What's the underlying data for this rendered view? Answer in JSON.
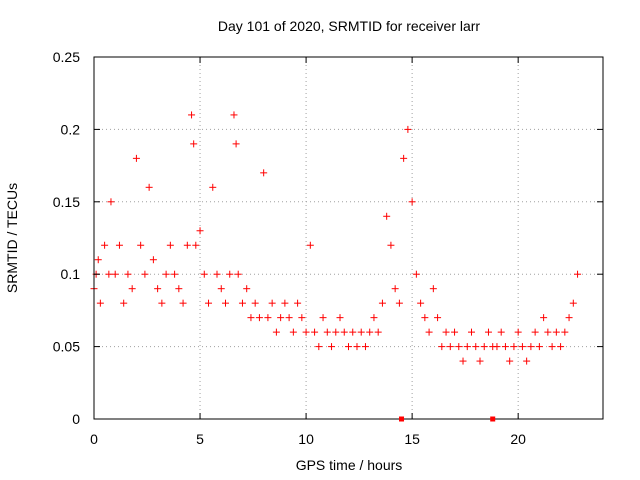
{
  "chart_data": {
    "type": "scatter",
    "title": "Day 101 of 2020, SRMTID for receiver larr",
    "xlabel": "GPS time / hours",
    "ylabel": "SRMTID / TECUs",
    "xlim": [
      0,
      24
    ],
    "ylim": [
      0,
      0.25
    ],
    "xticks": [
      0,
      5,
      10,
      15,
      20
    ],
    "xtick_labels": [
      "0",
      "5",
      "10",
      "15",
      "20"
    ],
    "yticks": [
      0,
      0.05,
      0.1,
      0.15,
      0.2,
      0.25
    ],
    "ytick_labels": [
      "0",
      "0.05",
      "0.1",
      "0.15",
      "0.2",
      "0.25"
    ],
    "grid": true,
    "marker": "plus",
    "color": "#ff0000",
    "series": [
      {
        "name": "SRMTID",
        "x": [
          0.0,
          0.1,
          0.2,
          0.3,
          0.5,
          0.7,
          0.8,
          1.0,
          1.2,
          1.4,
          1.6,
          1.8,
          2.0,
          2.2,
          2.4,
          2.6,
          2.8,
          3.0,
          3.2,
          3.4,
          3.6,
          3.8,
          4.0,
          4.2,
          4.4,
          4.6,
          4.7,
          4.8,
          5.0,
          5.2,
          5.4,
          5.6,
          5.8,
          6.0,
          6.2,
          6.4,
          6.6,
          6.7,
          6.8,
          7.0,
          7.2,
          7.4,
          7.6,
          7.8,
          8.0,
          8.2,
          8.4,
          8.6,
          8.8,
          9.0,
          9.2,
          9.4,
          9.6,
          9.8,
          10.0,
          10.2,
          10.4,
          10.6,
          10.8,
          11.0,
          11.2,
          11.4,
          11.6,
          11.8,
          12.0,
          12.2,
          12.4,
          12.6,
          12.8,
          13.0,
          13.2,
          13.4,
          13.6,
          13.8,
          14.0,
          14.2,
          14.4,
          14.6,
          14.8,
          15.0,
          15.2,
          15.4,
          15.6,
          15.8,
          16.0,
          16.2,
          16.4,
          16.6,
          16.8,
          17.0,
          17.2,
          17.4,
          17.6,
          17.8,
          18.0,
          18.2,
          18.4,
          18.6,
          18.8,
          19.0,
          19.2,
          19.4,
          19.6,
          19.8,
          20.0,
          20.2,
          20.4,
          20.6,
          20.8,
          21.0,
          21.2,
          21.4,
          21.6,
          21.8,
          22.0,
          22.2,
          22.4,
          22.6,
          22.8
        ],
        "y": [
          0.09,
          0.1,
          0.11,
          0.08,
          0.12,
          0.1,
          0.15,
          0.1,
          0.12,
          0.08,
          0.1,
          0.09,
          0.18,
          0.12,
          0.1,
          0.16,
          0.11,
          0.09,
          0.08,
          0.1,
          0.12,
          0.1,
          0.09,
          0.08,
          0.12,
          0.21,
          0.19,
          0.12,
          0.13,
          0.1,
          0.08,
          0.16,
          0.1,
          0.09,
          0.08,
          0.1,
          0.21,
          0.19,
          0.1,
          0.08,
          0.09,
          0.07,
          0.08,
          0.07,
          0.17,
          0.07,
          0.08,
          0.06,
          0.07,
          0.08,
          0.07,
          0.06,
          0.08,
          0.07,
          0.06,
          0.12,
          0.06,
          0.05,
          0.07,
          0.06,
          0.05,
          0.06,
          0.07,
          0.06,
          0.05,
          0.06,
          0.05,
          0.06,
          0.05,
          0.06,
          0.07,
          0.06,
          0.08,
          0.14,
          0.12,
          0.09,
          0.08,
          0.18,
          0.2,
          0.15,
          0.1,
          0.08,
          0.07,
          0.06,
          0.09,
          0.07,
          0.05,
          0.06,
          0.05,
          0.06,
          0.05,
          0.04,
          0.05,
          0.06,
          0.05,
          0.04,
          0.05,
          0.06,
          0.05,
          0.05,
          0.06,
          0.05,
          0.04,
          0.05,
          0.06,
          0.05,
          0.04,
          0.05,
          0.06,
          0.05,
          0.07,
          0.06,
          0.05,
          0.06,
          0.05,
          0.06,
          0.07,
          0.08,
          0.1
        ]
      }
    ],
    "markers_on_xaxis": [
      14.5,
      18.8
    ]
  }
}
